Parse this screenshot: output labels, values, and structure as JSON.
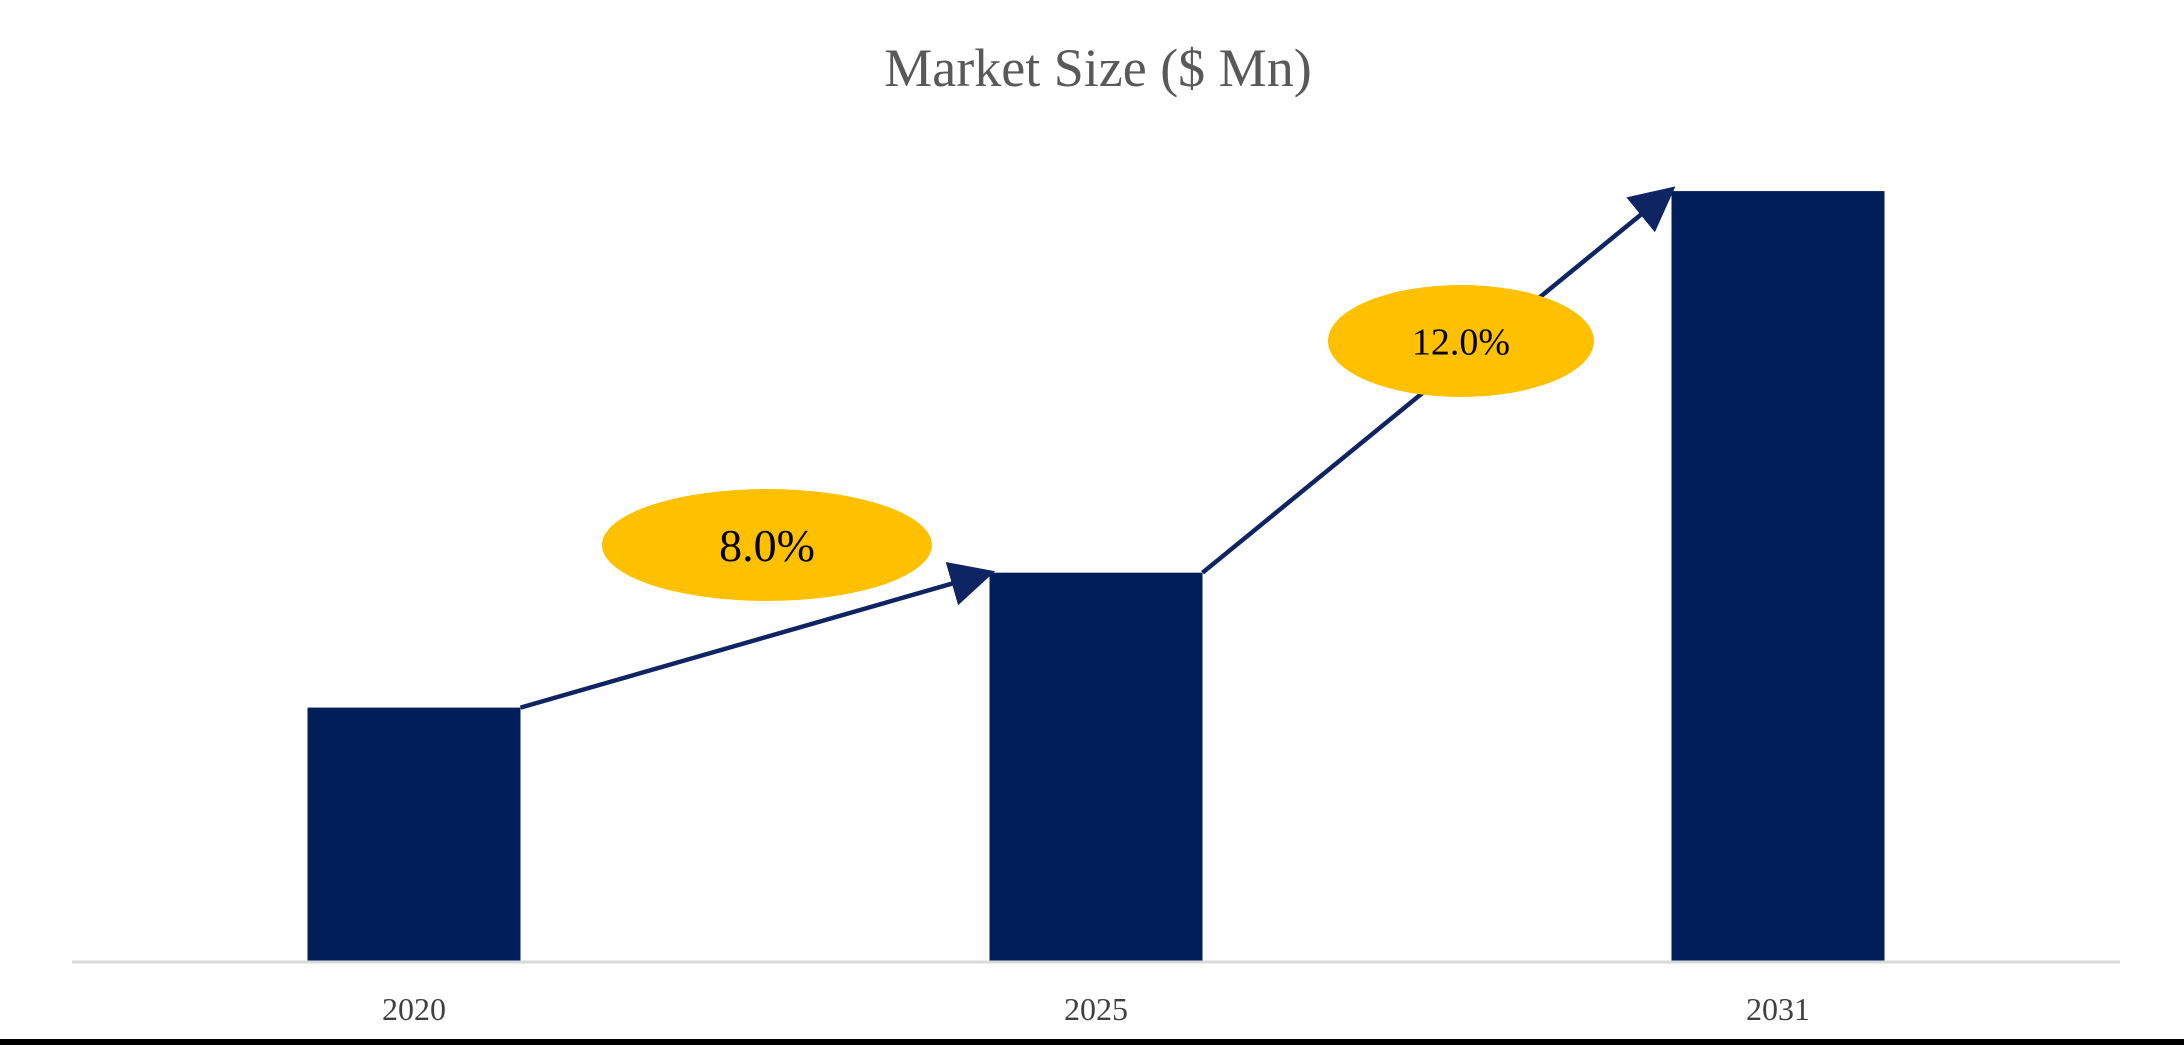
{
  "chart_data": {
    "type": "bar",
    "title": "Market Size ($ Mn)",
    "xlabel": "",
    "ylabel": "",
    "categories": [
      "2020",
      "2025",
      "2031"
    ],
    "values": [
      33,
      50.5,
      100
    ],
    "value_note": "relative bar heights; no numeric axis or data labels shown",
    "ylim": [
      0,
      110
    ],
    "grid": false,
    "legend": "none",
    "bar_color": "#001E5A",
    "arrow_color": "#0F2563",
    "cagr_labels": [
      {
        "text": "8.0%",
        "from": "2020",
        "to": "2025",
        "color": "#FFC000"
      },
      {
        "text": "12.0%",
        "from": "2025",
        "to": "2031",
        "color": "#FFC000"
      }
    ]
  }
}
